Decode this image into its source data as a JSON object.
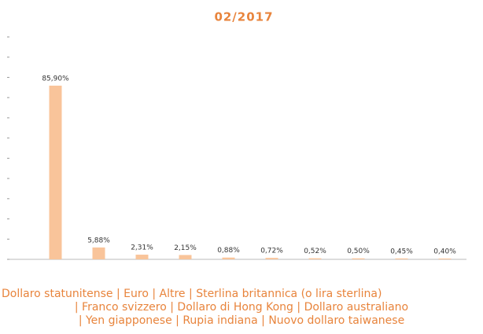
{
  "chart_data": {
    "type": "bar",
    "title": "02/2017",
    "categories": [
      "Dollaro statunitense",
      "Euro",
      "Altre",
      "Sterlina britannica (o lira sterlina)",
      "Franco svizzero",
      "Dollaro di Hong Kong",
      "Dollaro australiano",
      "Yen giapponese",
      "Rupia indiana",
      "Nuovo dollaro taiwanese"
    ],
    "values": [
      85.9,
      5.88,
      2.31,
      2.15,
      0.88,
      0.72,
      0.52,
      0.5,
      0.45,
      0.4
    ],
    "value_labels": [
      "85,90%",
      "5,88%",
      "2,31%",
      "2,15%",
      "0,88%",
      "0,72%",
      "0,52%",
      "0,50%",
      "0,45%",
      "0,40%"
    ],
    "color": "#f9c49a",
    "ylim": [
      0,
      110
    ],
    "yticks": [
      0,
      10,
      20,
      30,
      40,
      50,
      60,
      70,
      80,
      90,
      100,
      110
    ]
  }
}
